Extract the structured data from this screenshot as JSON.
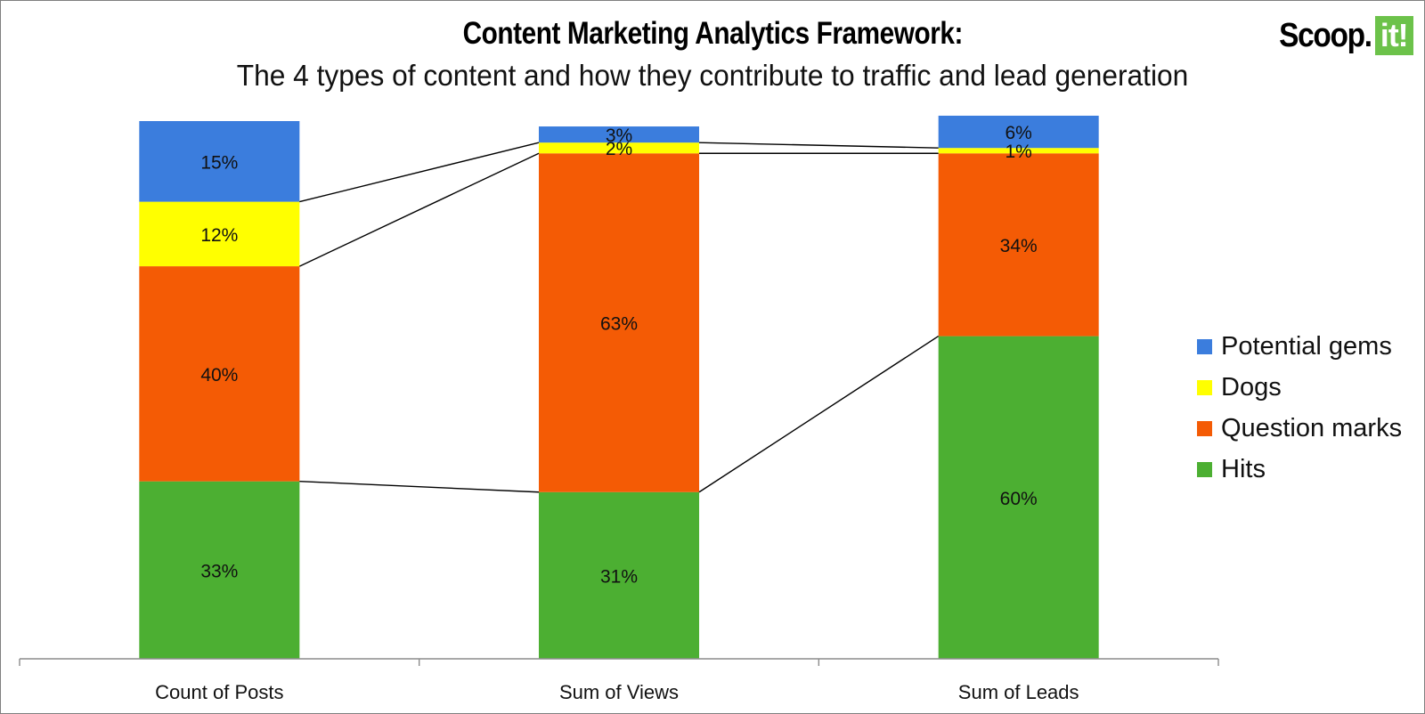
{
  "title": "Content Marketing Analytics Framework:",
  "subtitle": "The 4 types of content and how they contribute to traffic and lead generation",
  "logo": {
    "text": "Scoop.",
    "badge": "it!"
  },
  "chart_data": {
    "type": "bar",
    "stacked": true,
    "normalized": true,
    "categories": [
      "Count of Posts",
      "Sum of Views",
      "Sum of Leads"
    ],
    "ylim": [
      0,
      100
    ],
    "grid": false,
    "legend_position": "right",
    "connector_lines": true,
    "series": [
      {
        "name": "Hits",
        "color": "#4caf32",
        "values": [
          33,
          31,
          60
        ],
        "labels": [
          "33%",
          "31%",
          "60%"
        ]
      },
      {
        "name": "Question marks",
        "color": "#f45b05",
        "values": [
          40,
          63,
          34
        ],
        "labels": [
          "40%",
          "63%",
          "34%"
        ]
      },
      {
        "name": "Dogs",
        "color": "#ffff00",
        "values": [
          12,
          2,
          1
        ],
        "labels": [
          "12%",
          "2%",
          "1%"
        ]
      },
      {
        "name": "Potential gems",
        "color": "#3b7ddd",
        "values": [
          15,
          3,
          6
        ],
        "labels": [
          "15%",
          "3%",
          "6%"
        ]
      }
    ]
  },
  "legend": [
    {
      "name": "Potential gems",
      "color": "#3b7ddd"
    },
    {
      "name": "Dogs",
      "color": "#ffff00"
    },
    {
      "name": "Question marks",
      "color": "#f45b05"
    },
    {
      "name": "Hits",
      "color": "#4caf32"
    }
  ]
}
